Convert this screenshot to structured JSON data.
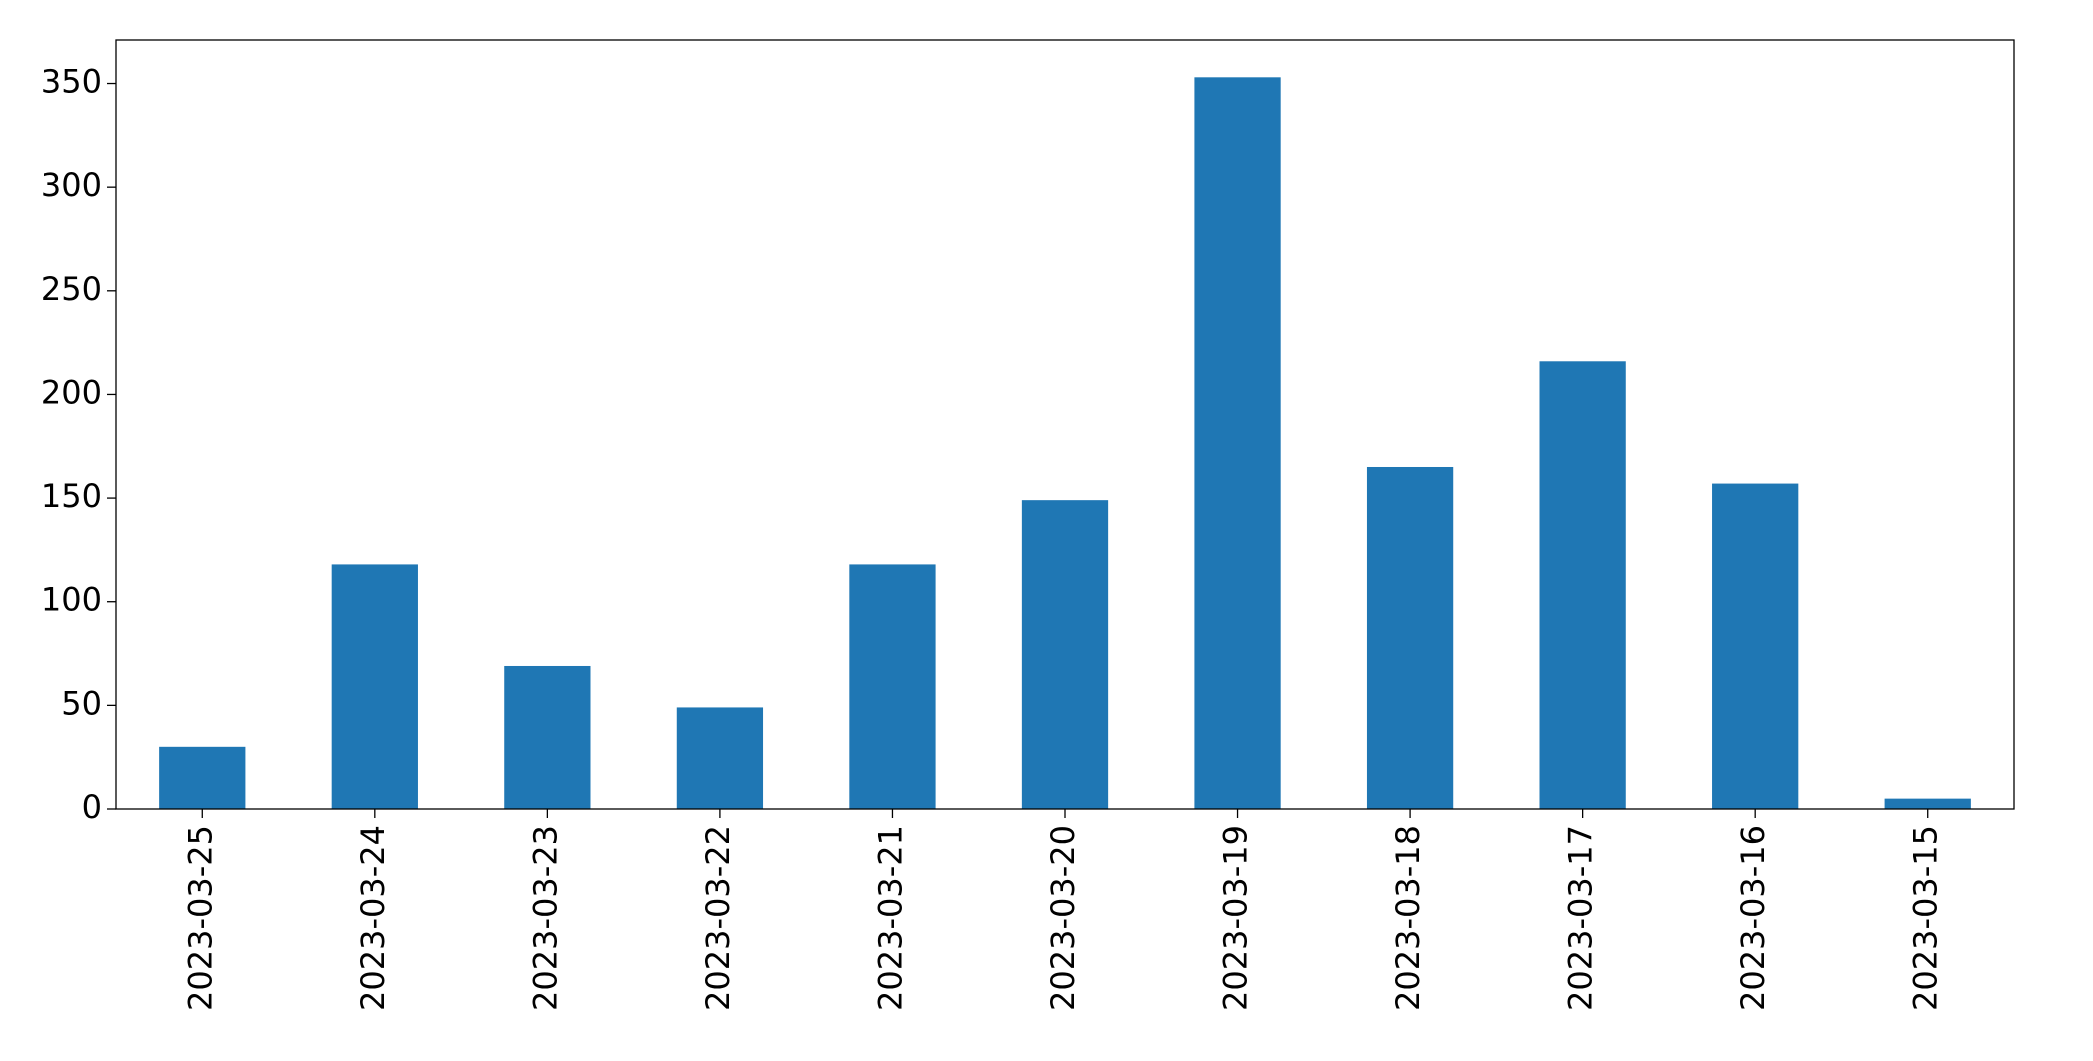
{
  "chart_data": {
    "type": "bar",
    "categories": [
      "2023-03-25",
      "2023-03-24",
      "2023-03-23",
      "2023-03-22",
      "2023-03-21",
      "2023-03-20",
      "2023-03-19",
      "2023-03-18",
      "2023-03-17",
      "2023-03-16",
      "2023-03-15"
    ],
    "values": [
      30,
      118,
      69,
      49,
      118,
      149,
      353,
      165,
      216,
      157,
      5
    ],
    "color": "#1f77b4",
    "ylim": [
      0,
      371
    ],
    "yticks": [
      0,
      50,
      100,
      150,
      200,
      250,
      300,
      350
    ],
    "grid": false
  }
}
